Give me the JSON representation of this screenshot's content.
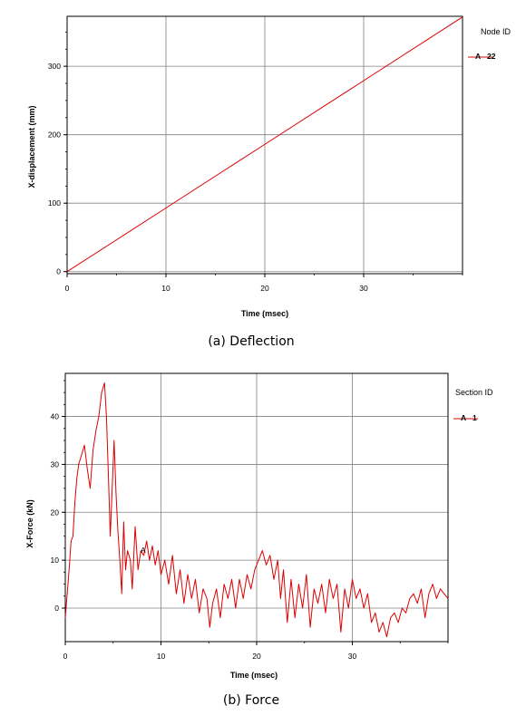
{
  "chart_data": [
    {
      "type": "line",
      "caption": "(a) Deflection",
      "xlabel": "Time (msec)",
      "ylabel": "X-displacement (mm)",
      "xlim": [
        0,
        40
      ],
      "ylim": [
        -3,
        373
      ],
      "x_ticks": [
        0,
        10,
        20,
        30
      ],
      "y_ticks": [
        0,
        100,
        200,
        300
      ],
      "grid": true,
      "legend_title": "Node ID",
      "legend_placement": "right",
      "series": [
        {
          "name": "22",
          "marker_label": "A",
          "color": "#dd0000",
          "x": [
            0,
            10,
            20,
            30,
            40
          ],
          "y": [
            0,
            93,
            186,
            279,
            372
          ]
        }
      ]
    },
    {
      "type": "line",
      "caption": "(b) Force",
      "xlabel": "Time (msec)",
      "ylabel": "X-Force (kN)",
      "xlim": [
        0,
        40
      ],
      "ylim": [
        -7,
        49
      ],
      "x_ticks": [
        0,
        10,
        20,
        30
      ],
      "y_ticks": [
        0,
        10,
        20,
        30,
        40
      ],
      "grid": true,
      "legend_title": "Section ID",
      "legend_placement": "right",
      "series": [
        {
          "name": "1",
          "marker_label": "A",
          "color": "#dd0000",
          "x": [
            0,
            0.2,
            0.4,
            0.6,
            0.8,
            1.0,
            1.2,
            1.4,
            1.7,
            2.0,
            2.3,
            2.6,
            2.9,
            3.2,
            3.5,
            3.8,
            4.1,
            4.3,
            4.5,
            4.7,
            4.9,
            5.1,
            5.3,
            5.5,
            5.7,
            5.9,
            6.1,
            6.3,
            6.5,
            6.8,
            7.0,
            7.3,
            7.6,
            7.9,
            8.2,
            8.5,
            8.8,
            9.1,
            9.4,
            9.7,
            10.0,
            10.4,
            10.8,
            11.2,
            11.6,
            12.0,
            12.4,
            12.8,
            13.2,
            13.6,
            14.0,
            14.4,
            14.8,
            15.1,
            15.4,
            15.8,
            16.2,
            16.6,
            17.0,
            17.4,
            17.8,
            18.2,
            18.6,
            19.0,
            19.4,
            19.8,
            20.2,
            20.6,
            21.0,
            21.4,
            21.8,
            22.2,
            22.5,
            22.8,
            23.2,
            23.6,
            24.0,
            24.4,
            24.8,
            25.2,
            25.6,
            26.0,
            26.4,
            26.8,
            27.2,
            27.6,
            28.0,
            28.4,
            28.8,
            29.2,
            29.6,
            30.0,
            30.4,
            30.8,
            31.2,
            31.6,
            32.0,
            32.4,
            32.8,
            33.2,
            33.6,
            34.0,
            34.4,
            34.8,
            35.2,
            35.6,
            36.0,
            36.4,
            36.8,
            37.2,
            37.6,
            38.0,
            38.4,
            38.8,
            39.2,
            39.6,
            40.0
          ],
          "y": [
            -2,
            3,
            8,
            14,
            15,
            22,
            27,
            30,
            32,
            34,
            29,
            25,
            33,
            37,
            40,
            45,
            47,
            40,
            28,
            15,
            25,
            35,
            24,
            16,
            10,
            3,
            18,
            8,
            12,
            10,
            4,
            17,
            8,
            12,
            11,
            14,
            10,
            13,
            9,
            12,
            7,
            10,
            5,
            11,
            3,
            8,
            1,
            7,
            2,
            6,
            -1,
            4,
            2,
            -4,
            1,
            4,
            -2,
            5,
            2,
            6,
            0,
            6,
            2,
            7,
            4,
            8,
            10,
            12,
            9,
            11,
            6,
            10,
            2,
            8,
            -3,
            6,
            -2,
            5,
            0,
            7,
            -4,
            4,
            1,
            5,
            -1,
            6,
            2,
            5,
            -5,
            4,
            0,
            6,
            2,
            4,
            0,
            3,
            -3,
            -1,
            -5,
            -3,
            -6,
            -2,
            -1,
            -3,
            0,
            -1,
            2,
            3,
            1,
            4,
            -2,
            3,
            5,
            2,
            4,
            3,
            2
          ]
        }
      ]
    }
  ]
}
